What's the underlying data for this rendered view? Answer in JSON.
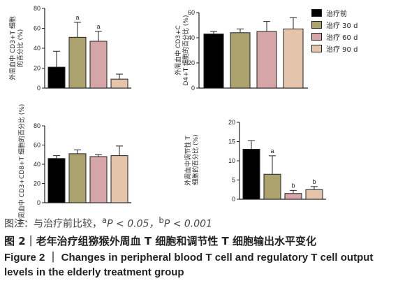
{
  "legend": {
    "items": [
      {
        "label": "治疗前",
        "color": "#000000"
      },
      {
        "label": "治疗 30 d",
        "color": "#aba26e"
      },
      {
        "label": "治疗 60 d",
        "color": "#d5a5a8"
      },
      {
        "label": "治疗 90 d",
        "color": "#e4c5ab"
      }
    ]
  },
  "note": {
    "prefix": "图注：与治疗前比较，",
    "a_sup": "a",
    "a_text": "P < 0.05，",
    "b_sup": "b",
    "b_text": "P < 0.001"
  },
  "caption": {
    "cn": "图 2｜老年治疗组猕猴外周血 T 细胞和调节性 T 细胞输出水平变化",
    "en": "Figure 2 ｜ Changes in peripheral blood T cell and regulatory T cell output levels in the elderly treatment group"
  },
  "chart_data": [
    {
      "type": "bar",
      "ylabel": "外周血中 CD3+T 细胞的百分比 (%)",
      "ylim": [
        0,
        80
      ],
      "yticks": [
        0,
        20,
        40,
        60,
        80
      ],
      "categories": [
        "治疗前",
        "治疗 30 d",
        "治疗 60 d",
        "治疗 90 d"
      ],
      "values": [
        21,
        51,
        47,
        9
      ],
      "errors": [
        16,
        15,
        10,
        5
      ],
      "annotations": [
        "",
        "a",
        "a",
        ""
      ],
      "colors": [
        "#000000",
        "#aba26e",
        "#d5a5a8",
        "#e4c5ab"
      ]
    },
    {
      "type": "bar",
      "ylabel": "外周血中 CD3+CD4+T 细胞的百分比 (%)",
      "ylim": [
        0,
        60
      ],
      "yticks": [
        0,
        20,
        40,
        60
      ],
      "categories": [
        "治疗前",
        "治疗 30 d",
        "治疗 60 d",
        "治疗 90 d"
      ],
      "values": [
        43,
        44,
        45,
        47
      ],
      "errors": [
        2,
        3,
        8,
        9
      ],
      "annotations": [
        "",
        "",
        "",
        ""
      ],
      "colors": [
        "#000000",
        "#aba26e",
        "#d5a5a8",
        "#e4c5ab"
      ]
    },
    {
      "type": "bar",
      "ylabel": "外周血中 CD3+CD8+T 细胞的百分比 (%)",
      "ylim": [
        0,
        80
      ],
      "yticks": [
        0,
        20,
        40,
        60,
        80
      ],
      "categories": [
        "治疗前",
        "治疗 30 d",
        "治疗 60 d",
        "治疗 90 d"
      ],
      "values": [
        46,
        51,
        48,
        49
      ],
      "errors": [
        3,
        4,
        2,
        10
      ],
      "annotations": [
        "",
        "",
        "",
        ""
      ],
      "colors": [
        "#000000",
        "#aba26e",
        "#d5a5a8",
        "#e4c5ab"
      ]
    },
    {
      "type": "bar",
      "ylabel": "外周血中调节性 T 细胞的百分比 (%)",
      "ylim": [
        0,
        20
      ],
      "yticks": [
        0,
        5,
        10,
        15,
        20
      ],
      "categories": [
        "治疗前",
        "治疗 30 d",
        "治疗 60 d",
        "治疗 90 d"
      ],
      "values": [
        13,
        6.5,
        1.5,
        2.5
      ],
      "errors": [
        2.2,
        4.8,
        0.8,
        0.8
      ],
      "annotations": [
        "",
        "a",
        "b",
        "b"
      ],
      "colors": [
        "#000000",
        "#aba26e",
        "#d5a5a8",
        "#e4c5ab"
      ]
    }
  ]
}
